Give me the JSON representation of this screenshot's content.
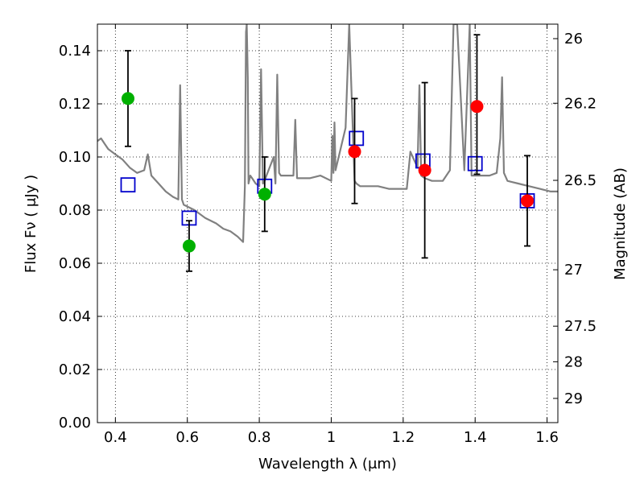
{
  "chart_data": {
    "type": "scatter",
    "title": "",
    "xlabel": "Wavelength  λ (μm)",
    "ylabel": "Flux  Fν  ( μJy )",
    "ylabel_right": "Magnitude (AB)",
    "xlim": [
      0.35,
      1.63
    ],
    "ylim": [
      0.0,
      0.15
    ],
    "grid": true,
    "x_ticks": [
      0.4,
      0.6,
      0.8,
      1.0,
      1.2,
      1.4,
      1.6
    ],
    "x_tick_labels": [
      "0.4",
      "0.6",
      "0.8",
      "1",
      "1.2",
      "1.4",
      "1.6"
    ],
    "y_ticks": [
      0.0,
      0.02,
      0.04,
      0.06,
      0.08,
      0.1,
      0.12,
      0.14
    ],
    "y_tick_labels": [
      "0.00",
      "0.02",
      "0.04",
      "0.06",
      "0.08",
      "0.10",
      "0.12",
      "0.14"
    ],
    "right_ticks": [
      {
        "mag": 26,
        "label": "26"
      },
      {
        "mag": 26.2,
        "label": "26.2"
      },
      {
        "mag": 26.5,
        "label": "26.5"
      },
      {
        "mag": 27,
        "label": "27"
      },
      {
        "mag": 27.5,
        "label": "27.5"
      },
      {
        "mag": 28,
        "label": "28"
      },
      {
        "mag": 29,
        "label": "29"
      }
    ],
    "colors": {
      "model": "#808080",
      "green": "#00b000",
      "red": "#ff0000",
      "square": "#0000cc",
      "errorbar": "#000000"
    },
    "series": [
      {
        "name": "model-spectrum",
        "kind": "line",
        "x": [
          0.35,
          0.36,
          0.37,
          0.38,
          0.4,
          0.42,
          0.44,
          0.46,
          0.48,
          0.49,
          0.5,
          0.52,
          0.54,
          0.56,
          0.575,
          0.58,
          0.585,
          0.59,
          0.62,
          0.65,
          0.68,
          0.7,
          0.72,
          0.74,
          0.755,
          0.76,
          0.763,
          0.765,
          0.768,
          0.77,
          0.775,
          0.78,
          0.79,
          0.8,
          0.805,
          0.81,
          0.815,
          0.82,
          0.84,
          0.845,
          0.85,
          0.855,
          0.86,
          0.88,
          0.895,
          0.9,
          0.905,
          0.91,
          0.94,
          0.97,
          1.0,
          1.003,
          1.006,
          1.009,
          1.012,
          1.04,
          1.05,
          1.06,
          1.065,
          1.07,
          1.08,
          1.1,
          1.13,
          1.16,
          1.19,
          1.21,
          1.22,
          1.24,
          1.245,
          1.25,
          1.26,
          1.28,
          1.31,
          1.33,
          1.34,
          1.35,
          1.37,
          1.385,
          1.39,
          1.41,
          1.44,
          1.46,
          1.47,
          1.475,
          1.48,
          1.49,
          1.52,
          1.55,
          1.58,
          1.61,
          1.63
        ],
        "y": [
          0.106,
          0.107,
          0.105,
          0.103,
          0.101,
          0.099,
          0.096,
          0.094,
          0.095,
          0.101,
          0.093,
          0.09,
          0.087,
          0.085,
          0.084,
          0.127,
          0.084,
          0.082,
          0.08,
          0.077,
          0.075,
          0.073,
          0.072,
          0.07,
          0.068,
          0.089,
          0.147,
          0.15,
          0.13,
          0.09,
          0.093,
          0.092,
          0.09,
          0.089,
          0.133,
          0.09,
          0.091,
          0.093,
          0.1,
          0.09,
          0.131,
          0.094,
          0.093,
          0.093,
          0.093,
          0.114,
          0.092,
          0.092,
          0.092,
          0.093,
          0.091,
          0.108,
          0.094,
          0.113,
          0.095,
          0.111,
          0.15,
          0.11,
          0.091,
          0.09,
          0.089,
          0.089,
          0.089,
          0.088,
          0.088,
          0.088,
          0.102,
          0.096,
          0.127,
          0.093,
          0.092,
          0.091,
          0.091,
          0.095,
          0.15,
          0.15,
          0.095,
          0.15,
          0.093,
          0.093,
          0.093,
          0.094,
          0.107,
          0.13,
          0.094,
          0.091,
          0.09,
          0.089,
          0.088,
          0.087,
          0.087
        ]
      },
      {
        "name": "green-measurements",
        "kind": "points",
        "color": "green",
        "points": [
          {
            "x": 0.435,
            "y": 0.122,
            "err_low": 0.104,
            "err_high": 0.14
          },
          {
            "x": 0.605,
            "y": 0.0665,
            "err_low": 0.057,
            "err_high": 0.076
          },
          {
            "x": 0.815,
            "y": 0.086,
            "err_low": 0.072,
            "err_high": 0.1
          }
        ]
      },
      {
        "name": "red-measurements",
        "kind": "points",
        "color": "red",
        "points": [
          {
            "x": 1.065,
            "y": 0.102,
            "err_low": 0.0825,
            "err_high": 0.122
          },
          {
            "x": 1.26,
            "y": 0.095,
            "err_low": 0.062,
            "err_high": 0.128
          },
          {
            "x": 1.405,
            "y": 0.119,
            "err_low": 0.0935,
            "err_high": 0.146
          },
          {
            "x": 1.545,
            "y": 0.0835,
            "err_low": 0.0665,
            "err_high": 0.1005
          }
        ]
      },
      {
        "name": "model-photometry",
        "kind": "squares",
        "color": "square",
        "points": [
          {
            "x": 0.435,
            "y": 0.0895
          },
          {
            "x": 0.605,
            "y": 0.077
          },
          {
            "x": 0.815,
            "y": 0.089
          },
          {
            "x": 1.07,
            "y": 0.107
          },
          {
            "x": 1.255,
            "y": 0.0985
          },
          {
            "x": 1.4,
            "y": 0.0975
          },
          {
            "x": 1.545,
            "y": 0.0835
          }
        ]
      }
    ]
  }
}
